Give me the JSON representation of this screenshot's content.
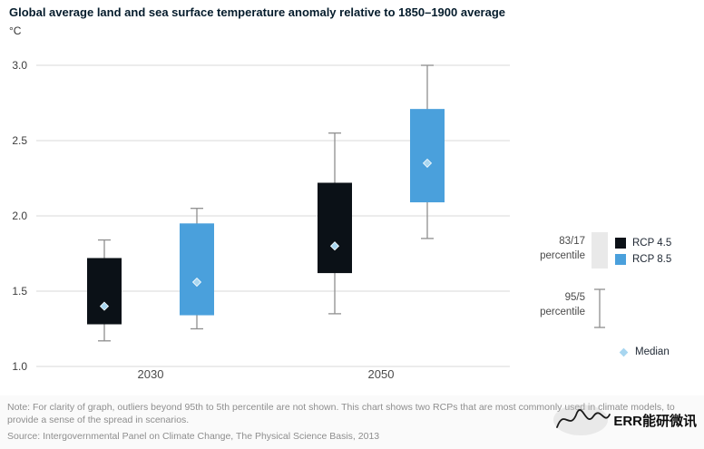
{
  "chart_data": {
    "type": "boxplot",
    "title": "Global average land and sea surface temperature anomaly relative to 1850–1900 average",
    "unit": "°C",
    "categories": [
      "2030",
      "2050"
    ],
    "y_axis": {
      "min": 1.0,
      "max": 3.0,
      "ticks": [
        3.0,
        2.5,
        2.0,
        1.5,
        1.0
      ],
      "grid": true
    },
    "gridline_color": "#d9d9d9",
    "whisker_color": "#8f8f8f",
    "median_color": "#a8d6f0",
    "series": [
      {
        "name": "RCP 4.5",
        "color": "#0b1117",
        "boxes": [
          {
            "category": "2030",
            "p5": 1.17,
            "p17": 1.28,
            "median": 1.4,
            "p83": 1.72,
            "p95": 1.84
          },
          {
            "category": "2050",
            "p5": 1.35,
            "p17": 1.62,
            "median": 1.8,
            "p83": 2.22,
            "p95": 2.55
          }
        ]
      },
      {
        "name": "RCP 8.5",
        "color": "#4aa0dc",
        "boxes": [
          {
            "category": "2030",
            "p5": 1.25,
            "p17": 1.34,
            "median": 1.56,
            "p83": 1.95,
            "p95": 2.05
          },
          {
            "category": "2050",
            "p5": 1.85,
            "p17": 2.09,
            "median": 2.35,
            "p83": 2.71,
            "p95": 3.0
          }
        ]
      }
    ],
    "legend": {
      "box_percentile_line1": "83/17",
      "box_percentile_line2": "percentile",
      "whisker_percentile_line1": "95/5",
      "whisker_percentile_line2": "percentile",
      "median_label": "Median"
    }
  },
  "footer": {
    "note": "Note: For clarity of graph, outliers beyond 95th to 5th percentile are not shown. This chart shows two RCPs that are most commonly used in climate models, to provide a sense of the spread in scenarios.",
    "source": "Source: Intergovernmental Panel on Climate Change, The Physical Science Basis, 2013"
  },
  "watermark": {
    "text": "ERR能研微讯"
  }
}
